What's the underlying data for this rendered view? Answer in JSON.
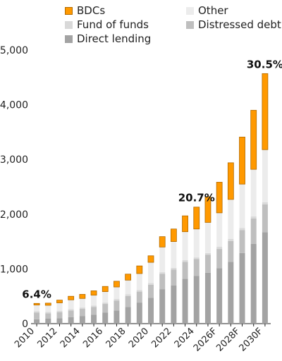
{
  "chart_data": {
    "type": "bar",
    "stacked": true,
    "categories": [
      "2010",
      "2011",
      "2012",
      "2013",
      "2014",
      "2015",
      "2016",
      "2017",
      "2018",
      "2019",
      "2020",
      "2021",
      "2022",
      "2023",
      "2024",
      "2025F",
      "2026F",
      "2027F",
      "2028F",
      "2029F",
      "2030F"
    ],
    "x_tick_labels": [
      "2010",
      "2012",
      "2014",
      "2016",
      "2018",
      "2020",
      "2022",
      "2024",
      "2026F",
      "2028F",
      "2030F"
    ],
    "y_tick_labels": [
      "0",
      "1,000",
      "2,000",
      "3,000",
      "4,000",
      "5,000"
    ],
    "ylim": [
      0,
      5000
    ],
    "series": [
      {
        "name": "Direct lending",
        "color": "#a3a3a3",
        "values": [
          80,
          90,
          100,
          120,
          140,
          165,
          200,
          240,
          305,
          385,
          470,
          630,
          700,
          820,
          870,
          930,
          1015,
          1130,
          1290,
          1460,
          1670
        ]
      },
      {
        "name": "Distressed debt",
        "color": "#bfbfbf",
        "values": [
          120,
          100,
          110,
          120,
          130,
          140,
          160,
          180,
          200,
          200,
          240,
          280,
          290,
          310,
          310,
          330,
          350,
          380,
          420,
          460,
          510
        ]
      },
      {
        "name": "Fund of funds",
        "color": "#d9d9d9",
        "values": [
          25,
          25,
          25,
          25,
          25,
          25,
          25,
          30,
          30,
          30,
          30,
          30,
          30,
          30,
          30,
          30,
          40,
          40,
          40,
          40,
          40
        ]
      },
      {
        "name": "Other",
        "color": "#ececec",
        "values": [
          115,
          120,
          145,
          170,
          165,
          190,
          200,
          220,
          260,
          300,
          380,
          460,
          480,
          520,
          520,
          560,
          620,
          720,
          800,
          860,
          960
        ]
      },
      {
        "name": "BDCs",
        "color": "#ff9900",
        "values": [
          30,
          40,
          50,
          65,
          75,
          80,
          95,
          105,
          110,
          140,
          120,
          190,
          230,
          290,
          400,
          470,
          560,
          670,
          860,
          1080,
          1390
        ]
      }
    ],
    "annotations": [
      {
        "text": "6.4%",
        "category": "2010"
      },
      {
        "text": "20.7%",
        "category": "2024"
      },
      {
        "text": "30.5%",
        "category": "2030F"
      }
    ],
    "legend_position": "top",
    "grid": false
  }
}
